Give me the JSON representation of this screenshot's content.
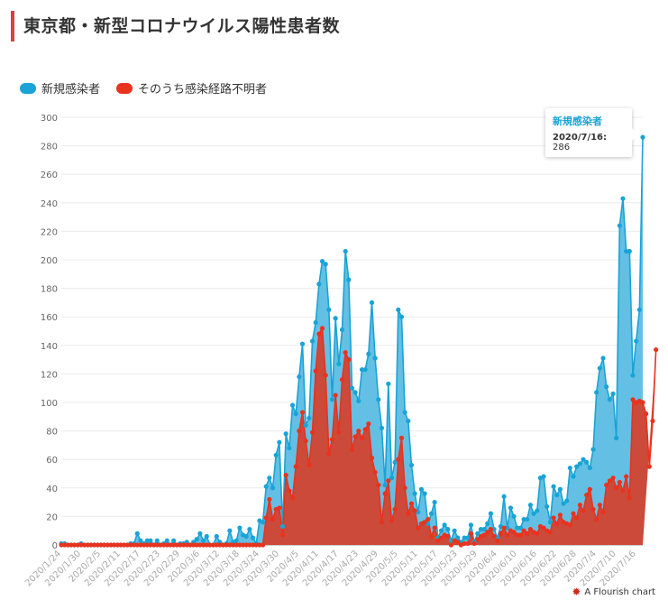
{
  "title": "東京都・新型コロナウイルス陽性患者数",
  "legend": [
    {
      "label": "新規感染者",
      "color": "#1aa3d6"
    },
    {
      "label": "そのうち感染経路不明者",
      "color": "#e8331e"
    }
  ],
  "tooltip": {
    "series": "新規感染者",
    "date": "2020/7/16:",
    "value": "286"
  },
  "credit": "A Flourish chart",
  "chart_data": {
    "type": "area",
    "title": "東京都・新型コロナウイルス陽性患者数",
    "xlabel": "",
    "ylabel": "",
    "ylim": [
      0,
      300
    ],
    "yticks": [
      0,
      20,
      40,
      60,
      80,
      100,
      120,
      140,
      160,
      180,
      200,
      220,
      240,
      260,
      280,
      300
    ],
    "x_start": "2020-01-24",
    "xticks": [
      "2020/1/24",
      "2020/1/30",
      "2020/2/5",
      "2020/2/11",
      "2020/2/17",
      "2020/2/23",
      "2020/2/29",
      "2020/3/6",
      "2020/3/12",
      "2020/3/18",
      "2020/3/24",
      "2020/3/30",
      "2020/4/5",
      "2020/4/11",
      "2020/4/17",
      "2020/4/23",
      "2020/4/29",
      "2020/5/5",
      "2020/5/11",
      "2020/5/17",
      "2020/5/23",
      "2020/5/29",
      "2020/6/4",
      "2020/6/10",
      "2020/6/16",
      "2020/6/22",
      "2020/6/28",
      "2020/7/4",
      "2020/7/10",
      "2020/7/16"
    ],
    "grid": true,
    "legend_position": "top-left",
    "series": [
      {
        "name": "新規感染者",
        "color": "#1aa3d6",
        "values": [
          1,
          1,
          0,
          0,
          0,
          0,
          1,
          0,
          0,
          0,
          0,
          0,
          0,
          0,
          0,
          0,
          0,
          0,
          0,
          0,
          0,
          1,
          1,
          8,
          3,
          1,
          3,
          3,
          0,
          3,
          0,
          1,
          3,
          0,
          3,
          0,
          1,
          1,
          2,
          0,
          2,
          4,
          8,
          3,
          6,
          0,
          0,
          6,
          2,
          0,
          1,
          10,
          2,
          3,
          12,
          7,
          6,
          11,
          5,
          1,
          17,
          16,
          41,
          47,
          40,
          63,
          72,
          13,
          78,
          68,
          98,
          92,
          118,
          141,
          84,
          89,
          143,
          156,
          183,
          199,
          197,
          165,
          102,
          159,
          127,
          151,
          206,
          186,
          110,
          107,
          101,
          123,
          123,
          134,
          170,
          131,
          102,
          82,
          42,
          113,
          47,
          58,
          165,
          160,
          93,
          87,
          56,
          36,
          23,
          39,
          36,
          15,
          22,
          30,
          5,
          10,
          14,
          11,
          3,
          10,
          5,
          2,
          5,
          5,
          14,
          2,
          8,
          11,
          11,
          15,
          22,
          11,
          5,
          13,
          34,
          12,
          26,
          20,
          12,
          12,
          18,
          18,
          28,
          22,
          24,
          47,
          48,
          27,
          16,
          41,
          35,
          39,
          29,
          31,
          54,
          48,
          55,
          57,
          60,
          58,
          54,
          67,
          107,
          124,
          131,
          111,
          102,
          106,
          75,
          224,
          243,
          206,
          206,
          119,
          143,
          165,
          286
        ]
      },
      {
        "name": "そのうち感染経路不明者",
        "color": "#e8331e",
        "values": [
          0,
          0,
          0,
          0,
          0,
          0,
          0,
          0,
          0,
          0,
          0,
          0,
          0,
          0,
          0,
          0,
          0,
          0,
          0,
          0,
          0,
          0,
          0,
          0,
          0,
          0,
          0,
          0,
          0,
          0,
          0,
          0,
          0,
          0,
          0,
          0,
          0,
          0,
          0,
          0,
          0,
          0,
          0,
          0,
          0,
          0,
          0,
          0,
          0,
          0,
          0,
          0,
          0,
          0,
          0,
          0,
          0,
          0,
          0,
          0,
          0,
          0,
          19,
          32,
          18,
          25,
          26,
          7,
          49,
          38,
          33,
          55,
          80,
          93,
          73,
          56,
          79,
          122,
          148,
          152,
          119,
          64,
          74,
          105,
          79,
          116,
          135,
          130,
          67,
          76,
          80,
          75,
          81,
          85,
          61,
          51,
          42,
          16,
          36,
          45,
          17,
          25,
          60,
          75,
          40,
          22,
          29,
          24,
          12,
          15,
          16,
          18,
          6,
          12,
          3,
          5,
          7,
          6,
          0,
          3,
          2,
          0,
          1,
          1,
          8,
          1,
          4,
          6,
          7,
          9,
          11,
          6,
          3,
          8,
          12,
          7,
          10,
          9,
          7,
          7,
          10,
          8,
          11,
          9,
          8,
          13,
          12,
          10,
          9,
          19,
          15,
          21,
          16,
          15,
          14,
          22,
          19,
          28,
          24,
          35,
          39,
          25,
          18,
          28,
          23,
          42,
          45,
          47,
          40,
          44,
          38,
          48,
          33,
          102,
          100,
          101,
          100,
          92,
          55,
          87,
          137
        ]
      }
    ]
  }
}
